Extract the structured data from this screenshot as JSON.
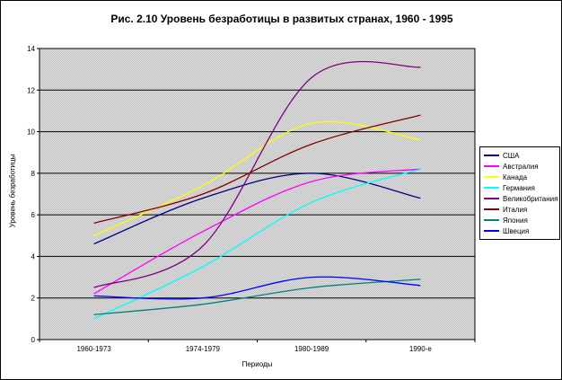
{
  "figure": {
    "title": "Рис. 2.10 Уровень безработицы в развитых странах, 1960 - 1995",
    "y_axis_title": "Уровень безработицы",
    "x_axis_title": "Периоды"
  },
  "chart_data": {
    "type": "line",
    "title": "Рис. 2.10 Уровень безработицы в развитых странах, 1960 - 1995",
    "xlabel": "Периоды",
    "ylabel": "Уровень безработицы",
    "categories": [
      "1960-1973",
      "1974-1979",
      "1980-1989",
      "1990-е"
    ],
    "ylim": [
      0,
      14
    ],
    "ytick_step": 2,
    "yticks": [
      0,
      2,
      4,
      6,
      8,
      10,
      12,
      14
    ],
    "grid": true,
    "smoothed_lines": true,
    "legend_position": "right",
    "plot_area_color": "#d0d0d0",
    "gridline_color": "#000000",
    "series": [
      {
        "name": "США",
        "color": "#000080",
        "values": [
          4.6,
          6.8,
          8.0,
          6.8
        ]
      },
      {
        "name": "Австралия",
        "color": "#ff00ff",
        "values": [
          2.2,
          5.2,
          7.6,
          8.2
        ]
      },
      {
        "name": "Канада",
        "color": "#ffff00",
        "values": [
          5.0,
          7.4,
          10.4,
          9.6
        ]
      },
      {
        "name": "Германия",
        "color": "#00ffff",
        "values": [
          1.0,
          3.5,
          6.6,
          8.2
        ]
      },
      {
        "name": "Великобритания",
        "color": "#800080",
        "values": [
          2.5,
          4.5,
          12.6,
          13.1
        ]
      },
      {
        "name": "Италия",
        "color": "#800000",
        "values": [
          5.6,
          7.0,
          9.4,
          10.8
        ]
      },
      {
        "name": "Япония",
        "color": "#008080",
        "values": [
          1.2,
          1.7,
          2.5,
          2.9
        ]
      },
      {
        "name": "Швеция",
        "color": "#0000ff",
        "values": [
          2.1,
          2.0,
          3.0,
          2.6
        ]
      }
    ]
  }
}
